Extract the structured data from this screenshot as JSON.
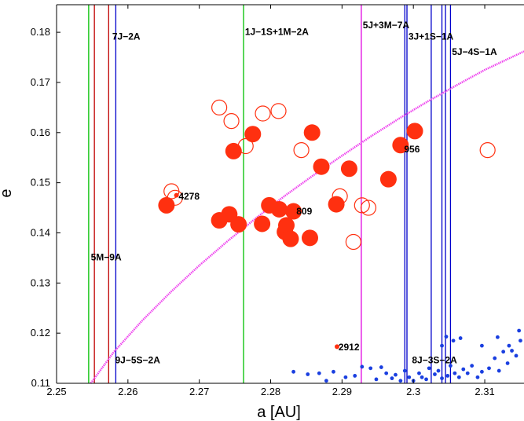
{
  "chart_data": {
    "type": "scatter",
    "xlabel": "a [AU]",
    "ylabel": "e",
    "xlim": [
      2.25,
      2.3155
    ],
    "ylim": [
      0.11,
      0.1855
    ],
    "x_ticks": [
      2.25,
      2.26,
      2.27,
      2.28,
      2.29,
      2.3,
      2.31
    ],
    "x_tick_labels": [
      "2.25",
      "2.26",
      "2.27",
      "2.28",
      "2.29",
      "2.3",
      "2.31"
    ],
    "y_ticks": [
      0.11,
      0.12,
      0.13,
      0.14,
      0.15,
      0.16,
      0.17,
      0.18
    ],
    "y_tick_labels": [
      "0.11",
      "0.12",
      "0.13",
      "0.14",
      "0.15",
      "0.16",
      "0.17",
      "0.18"
    ],
    "colors": {
      "green": "#00c000",
      "red": "#c00000",
      "blue": "#0000cc",
      "magenta": "#e000e0",
      "curve": "#ee44ee",
      "marker": "#ff3010",
      "dots": "#1a3fe0"
    },
    "resonance_lines": [
      {
        "x": 2.2545,
        "color": "green"
      },
      {
        "x": 2.2553,
        "color": "red"
      },
      {
        "x": 2.2573,
        "color": "red"
      },
      {
        "x": 2.2583,
        "color": "blue"
      },
      {
        "x": 2.2762,
        "color": "green"
      },
      {
        "x": 2.2927,
        "color": "magenta"
      },
      {
        "x": 2.2988,
        "color": "blue"
      },
      {
        "x": 2.2991,
        "color": "blue"
      },
      {
        "x": 2.3025,
        "color": "blue"
      },
      {
        "x": 2.304,
        "color": "blue"
      },
      {
        "x": 2.3045,
        "color": "blue"
      },
      {
        "x": 2.3052,
        "color": "blue"
      }
    ],
    "resonance_labels": [
      {
        "text": "7J−2A",
        "x": 2.2578,
        "y": 0.1785
      },
      {
        "text": "1J−1S+1M−2A",
        "x": 2.2764,
        "y": 0.1795
      },
      {
        "text": "5J+3M−7A",
        "x": 2.2929,
        "y": 0.1808
      },
      {
        "text": "3J+1S−1A",
        "x": 2.2993,
        "y": 0.1785
      },
      {
        "text": "5J−4S−1A",
        "x": 2.3054,
        "y": 0.1755
      },
      {
        "text": "5M−9A",
        "x": 2.2548,
        "y": 0.1345
      },
      {
        "text": "9J−5S−2A",
        "x": 2.2582,
        "y": 0.114
      },
      {
        "text": "8J−3S−2A",
        "x": 2.2998,
        "y": 0.114
      }
    ],
    "curve_points": [
      [
        2.2548,
        0.11
      ],
      [
        2.258,
        0.1162
      ],
      [
        2.262,
        0.1225
      ],
      [
        2.266,
        0.1282
      ],
      [
        2.27,
        0.1335
      ],
      [
        2.274,
        0.1384
      ],
      [
        2.278,
        0.143
      ],
      [
        2.282,
        0.1474
      ],
      [
        2.286,
        0.1515
      ],
      [
        2.29,
        0.1554
      ],
      [
        2.294,
        0.1592
      ],
      [
        2.298,
        0.1628
      ],
      [
        2.302,
        0.1662
      ],
      [
        2.306,
        0.1694
      ],
      [
        2.31,
        0.1725
      ],
      [
        2.3155,
        0.1762
      ]
    ],
    "filled_markers": [
      {
        "x": 2.2654,
        "y": 0.1455
      },
      {
        "x": 2.2728,
        "y": 0.1425
      },
      {
        "x": 2.2742,
        "y": 0.1437
      },
      {
        "x": 2.2755,
        "y": 0.1417
      },
      {
        "x": 2.2748,
        "y": 0.1563
      },
      {
        "x": 2.2775,
        "y": 0.1597
      },
      {
        "x": 2.2788,
        "y": 0.1418
      },
      {
        "x": 2.2798,
        "y": 0.1455
      },
      {
        "x": 2.2812,
        "y": 0.1447
      },
      {
        "x": 2.282,
        "y": 0.1402
      },
      {
        "x": 2.2822,
        "y": 0.1415
      },
      {
        "x": 2.2828,
        "y": 0.1388
      },
      {
        "x": 2.2832,
        "y": 0.1443
      },
      {
        "x": 2.2855,
        "y": 0.139
      },
      {
        "x": 2.2858,
        "y": 0.16
      },
      {
        "x": 2.2871,
        "y": 0.1532
      },
      {
        "x": 2.2892,
        "y": 0.1457
      },
      {
        "x": 2.291,
        "y": 0.1528
      },
      {
        "x": 2.2965,
        "y": 0.1507
      },
      {
        "x": 2.2982,
        "y": 0.1575
      },
      {
        "x": 2.3002,
        "y": 0.1603
      }
    ],
    "open_markers": [
      {
        "x": 2.2728,
        "y": 0.165
      },
      {
        "x": 2.2745,
        "y": 0.1623
      },
      {
        "x": 2.2765,
        "y": 0.1573
      },
      {
        "x": 2.2789,
        "y": 0.1638
      },
      {
        "x": 2.2811,
        "y": 0.1643
      },
      {
        "x": 2.2843,
        "y": 0.1565
      },
      {
        "x": 2.2661,
        "y": 0.1483
      },
      {
        "x": 2.2666,
        "y": 0.147
      },
      {
        "x": 2.2897,
        "y": 0.1473
      },
      {
        "x": 2.2916,
        "y": 0.1382
      },
      {
        "x": 2.2928,
        "y": 0.1455
      },
      {
        "x": 2.2937,
        "y": 0.145
      },
      {
        "x": 2.3104,
        "y": 0.1565
      }
    ],
    "small_red_points": [
      {
        "x": 2.2668,
        "y": 0.1475
      },
      {
        "x": 2.2893,
        "y": 0.1173
      }
    ],
    "asteroid_labels": [
      {
        "text": "4278",
        "x": 2.2671,
        "y": 0.1473
      },
      {
        "text": "809",
        "x": 2.2836,
        "y": 0.1443
      },
      {
        "text": "956",
        "x": 2.2987,
        "y": 0.1567
      },
      {
        "text": "2912",
        "x": 2.2895,
        "y": 0.1172
      }
    ],
    "blue_points": [
      {
        "x": 2.2832,
        "y": 0.1123
      },
      {
        "x": 2.2852,
        "y": 0.1118
      },
      {
        "x": 2.2868,
        "y": 0.112
      },
      {
        "x": 2.2878,
        "y": 0.1105
      },
      {
        "x": 2.2888,
        "y": 0.1123
      },
      {
        "x": 2.2905,
        "y": 0.1112
      },
      {
        "x": 2.2918,
        "y": 0.1115
      },
      {
        "x": 2.2928,
        "y": 0.1133
      },
      {
        "x": 2.294,
        "y": 0.113
      },
      {
        "x": 2.2948,
        "y": 0.1108
      },
      {
        "x": 2.2955,
        "y": 0.1132
      },
      {
        "x": 2.2962,
        "y": 0.112
      },
      {
        "x": 2.297,
        "y": 0.111
      },
      {
        "x": 2.2975,
        "y": 0.1117
      },
      {
        "x": 2.2982,
        "y": 0.1105
      },
      {
        "x": 2.2988,
        "y": 0.1125
      },
      {
        "x": 2.2994,
        "y": 0.1112
      },
      {
        "x": 2.3,
        "y": 0.1105
      },
      {
        "x": 2.3008,
        "y": 0.112
      },
      {
        "x": 2.3012,
        "y": 0.1112
      },
      {
        "x": 2.3018,
        "y": 0.1108
      },
      {
        "x": 2.3022,
        "y": 0.113
      },
      {
        "x": 2.303,
        "y": 0.1118
      },
      {
        "x": 2.3035,
        "y": 0.1125
      },
      {
        "x": 2.304,
        "y": 0.111
      },
      {
        "x": 2.3048,
        "y": 0.1115
      },
      {
        "x": 2.3052,
        "y": 0.1135
      },
      {
        "x": 2.3058,
        "y": 0.112
      },
      {
        "x": 2.3064,
        "y": 0.1112
      },
      {
        "x": 2.307,
        "y": 0.1128
      },
      {
        "x": 2.3076,
        "y": 0.112
      },
      {
        "x": 2.3082,
        "y": 0.1135
      },
      {
        "x": 2.309,
        "y": 0.1112
      },
      {
        "x": 2.3096,
        "y": 0.1123
      },
      {
        "x": 2.3106,
        "y": 0.113
      },
      {
        "x": 2.3114,
        "y": 0.115
      },
      {
        "x": 2.312,
        "y": 0.1125
      },
      {
        "x": 2.3126,
        "y": 0.1163
      },
      {
        "x": 2.3132,
        "y": 0.114
      },
      {
        "x": 2.3138,
        "y": 0.1165
      },
      {
        "x": 2.3144,
        "y": 0.1155
      },
      {
        "x": 2.315,
        "y": 0.1185
      },
      {
        "x": 2.3046,
        "y": 0.1193
      },
      {
        "x": 2.3056,
        "y": 0.1185
      },
      {
        "x": 2.3066,
        "y": 0.119
      },
      {
        "x": 2.304,
        "y": 0.1175
      },
      {
        "x": 2.3096,
        "y": 0.1175
      },
      {
        "x": 2.3118,
        "y": 0.1192
      },
      {
        "x": 2.3134,
        "y": 0.1175
      },
      {
        "x": 2.3148,
        "y": 0.1205
      }
    ]
  }
}
